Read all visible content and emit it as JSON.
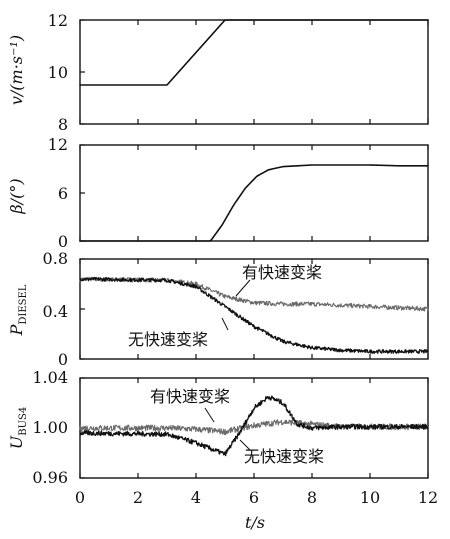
{
  "chart_data": [
    {
      "type": "line",
      "ylabel": "v/(m·s⁻¹)",
      "xlim": [
        0,
        12
      ],
      "ylim": [
        8,
        12
      ],
      "yticks": [
        "8",
        "10",
        "12"
      ],
      "series": [
        {
          "x": [
            0,
            3,
            5,
            12
          ],
          "y": [
            9.5,
            9.5,
            12,
            12
          ]
        }
      ]
    },
    {
      "type": "line",
      "ylabel": "β/(°)",
      "xlim": [
        0,
        12
      ],
      "ylim": [
        0,
        12
      ],
      "yticks": [
        "0",
        "6",
        "12"
      ],
      "series": [
        {
          "x": [
            0,
            4.5,
            4.9,
            5.3,
            5.7,
            6.1,
            6.5,
            7,
            8,
            9,
            10,
            11,
            12
          ],
          "y": [
            0,
            0,
            2,
            4.5,
            6.6,
            8.1,
            8.9,
            9.3,
            9.5,
            9.5,
            9.5,
            9.4,
            9.4
          ]
        }
      ]
    },
    {
      "type": "line",
      "ylabel": "P_DIESEL",
      "xlim": [
        0,
        12
      ],
      "ylim": [
        0,
        0.8
      ],
      "yticks": [
        "0",
        "0.4",
        "0.8"
      ],
      "annotations": [
        "有快速变桨",
        "无快速变桨"
      ],
      "series": [
        {
          "name": "有快速变桨",
          "x": [
            0,
            3,
            4,
            5,
            6,
            7,
            8,
            9,
            10,
            11,
            12
          ],
          "y": [
            0.64,
            0.63,
            0.6,
            0.5,
            0.45,
            0.44,
            0.44,
            0.43,
            0.42,
            0.41,
            0.4
          ]
        },
        {
          "name": "无快速变桨",
          "x": [
            0,
            3,
            4,
            5,
            6,
            7,
            8,
            9,
            10,
            11,
            12
          ],
          "y": [
            0.64,
            0.63,
            0.58,
            0.42,
            0.26,
            0.14,
            0.09,
            0.07,
            0.06,
            0.06,
            0.06
          ]
        }
      ]
    },
    {
      "type": "line",
      "ylabel": "U_BUS4",
      "xlabel": "t/s",
      "xlim": [
        0,
        12
      ],
      "ylim": [
        0.96,
        1.04
      ],
      "xticks": [
        "0",
        "2",
        "4",
        "6",
        "8",
        "10",
        "12"
      ],
      "yticks": [
        "0.96",
        "1.00",
        "1.04"
      ],
      "annotations": [
        "有快速变桨",
        "无快速变桨"
      ],
      "series": [
        {
          "name": "有快速变桨",
          "x": [
            0,
            3,
            4,
            5,
            6,
            7,
            8,
            9,
            10,
            11,
            12
          ],
          "y": [
            1.0,
            1.0,
            0.999,
            0.997,
            1.002,
            1.005,
            1.003,
            1.001,
            1.001,
            1.001,
            1.001
          ]
        },
        {
          "name": "无快速变桨",
          "x": [
            0,
            3,
            4,
            5,
            5.5,
            6,
            6.5,
            7,
            7.5,
            8,
            9,
            10,
            11,
            12
          ],
          "y": [
            0.996,
            0.995,
            0.988,
            0.979,
            0.996,
            1.016,
            1.025,
            1.02,
            1.003,
            1.0,
            1.001,
            1.001,
            1.001,
            1.001
          ]
        }
      ]
    }
  ]
}
